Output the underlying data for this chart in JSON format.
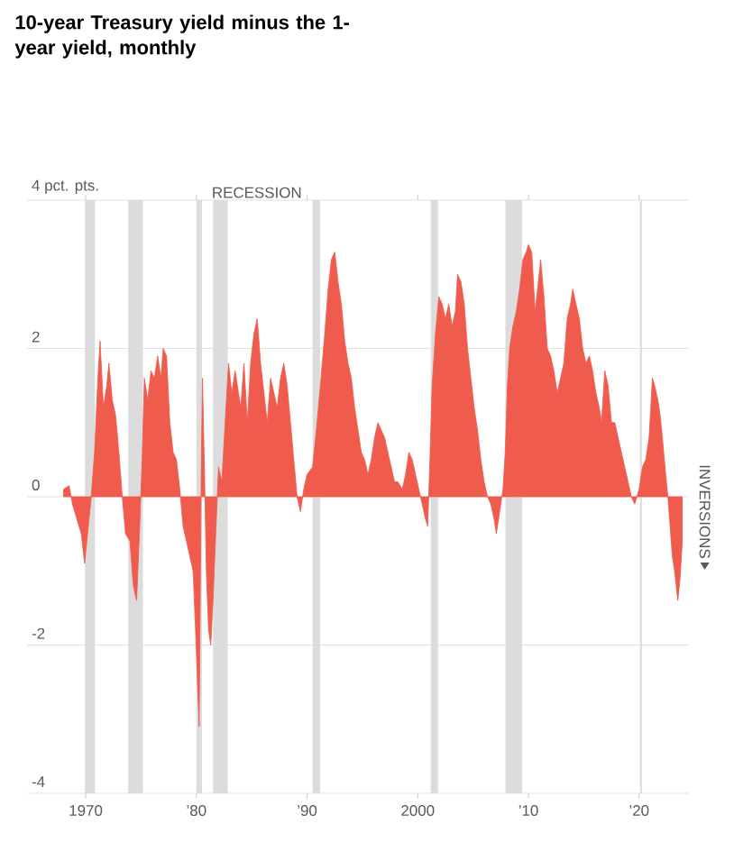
{
  "chart_data": {
    "type": "area",
    "title": "10-year Treasury yield minus the 1-year yield, monthly",
    "color": "#ef5b4c",
    "x": [
      1968.0,
      1968.5,
      1968.8,
      1969.2,
      1969.6,
      1969.9,
      1970.1,
      1970.5,
      1970.8,
      1971.1,
      1971.3,
      1971.6,
      1971.9,
      1972.1,
      1972.4,
      1972.7,
      1973.0,
      1973.3,
      1973.6,
      1974.0,
      1974.3,
      1974.6,
      1974.9,
      1975.1,
      1975.3,
      1975.6,
      1975.9,
      1976.2,
      1976.5,
      1976.8,
      1977.0,
      1977.3,
      1977.6,
      1977.9,
      1978.2,
      1978.5,
      1978.8,
      1979.1,
      1979.4,
      1979.7,
      1979.9,
      1980.1,
      1980.25,
      1980.45,
      1980.55,
      1980.75,
      1980.9,
      1981.1,
      1981.3,
      1981.5,
      1981.8,
      1982.0,
      1982.3,
      1982.6,
      1982.9,
      1983.2,
      1983.5,
      1983.8,
      1984.0,
      1984.3,
      1984.6,
      1984.9,
      1985.2,
      1985.5,
      1985.8,
      1986.1,
      1986.4,
      1986.7,
      1987.0,
      1987.3,
      1987.6,
      1987.9,
      1988.2,
      1988.5,
      1988.8,
      1989.1,
      1989.4,
      1989.7,
      1990.0,
      1990.5,
      1990.9,
      1991.2,
      1991.6,
      1991.9,
      1992.2,
      1992.5,
      1992.8,
      1993.1,
      1993.4,
      1993.7,
      1994.0,
      1994.3,
      1994.6,
      1994.9,
      1995.2,
      1995.5,
      1995.8,
      1996.1,
      1996.4,
      1996.7,
      1997.0,
      1997.3,
      1997.6,
      1997.9,
      1998.2,
      1998.6,
      1998.9,
      1999.2,
      1999.5,
      1999.8,
      2000.1,
      2000.4,
      2000.7,
      2000.9,
      2001.1,
      2001.3,
      2001.6,
      2001.9,
      2002.2,
      2002.5,
      2002.8,
      2003.1,
      2003.4,
      2003.6,
      2003.9,
      2004.2,
      2004.5,
      2004.8,
      2005.1,
      2005.4,
      2005.7,
      2006.0,
      2006.3,
      2006.6,
      2006.9,
      2007.1,
      2007.4,
      2007.7,
      2007.9,
      2008.1,
      2008.3,
      2008.6,
      2008.9,
      2009.2,
      2009.5,
      2009.8,
      2010.0,
      2010.3,
      2010.6,
      2010.9,
      2011.1,
      2011.4,
      2011.7,
      2012.0,
      2012.3,
      2012.6,
      2012.9,
      2013.2,
      2013.5,
      2013.8,
      2014.0,
      2014.3,
      2014.6,
      2014.9,
      2015.2,
      2015.5,
      2015.8,
      2016.1,
      2016.4,
      2016.6,
      2016.9,
      2017.2,
      2017.5,
      2017.8,
      2018.1,
      2018.4,
      2018.7,
      2019.0,
      2019.3,
      2019.6,
      2019.8,
      2020.0,
      2020.3,
      2020.6,
      2020.9,
      2021.2,
      2021.4,
      2021.7,
      2021.9,
      2022.1,
      2022.4,
      2022.6,
      2022.8,
      2023.0,
      2023.2,
      2023.5,
      2023.7,
      2023.9
    ],
    "values": [
      0.1,
      0.15,
      -0.1,
      -0.3,
      -0.5,
      -0.9,
      -0.6,
      0,
      0.6,
      1.6,
      2.1,
      1.2,
      1.5,
      1.8,
      1.3,
      1.1,
      0.6,
      0,
      -0.5,
      -0.6,
      -1.2,
      -1.4,
      -0.3,
      0.5,
      1.6,
      1.3,
      1.7,
      1.6,
      1.9,
      1.6,
      2.0,
      1.9,
      1.0,
      0.6,
      0.5,
      0.1,
      -0.4,
      -0.6,
      -0.8,
      -1.0,
      -1.7,
      -2.5,
      -3.1,
      0.5,
      1.6,
      0.2,
      -1.0,
      -1.8,
      -2.0,
      -1.4,
      -0.3,
      0.4,
      0.2,
      1.0,
      1.8,
      1.4,
      1.7,
      1.4,
      1.2,
      1.8,
      1.0,
      1.8,
      2.2,
      2.4,
      1.8,
      1.4,
      1.0,
      1.6,
      1.4,
      1.2,
      1.6,
      1.8,
      1.5,
      1.0,
      0.5,
      0.0,
      -0.2,
      0.1,
      0.3,
      0.4,
      1.0,
      1.5,
      2.2,
      2.8,
      3.2,
      3.3,
      2.9,
      2.6,
      2.1,
      1.8,
      1.6,
      1.2,
      0.9,
      0.6,
      0.5,
      0.3,
      0.5,
      0.8,
      1.0,
      0.9,
      0.8,
      0.6,
      0.4,
      0.2,
      0.2,
      0.1,
      0.3,
      0.6,
      0.5,
      0.3,
      0.1,
      -0.1,
      -0.3,
      -0.4,
      0.5,
      1.5,
      2.2,
      2.7,
      2.6,
      2.4,
      2.6,
      2.3,
      2.5,
      3.0,
      2.9,
      2.6,
      2.0,
      1.6,
      1.2,
      0.9,
      0.5,
      0.2,
      0.0,
      -0.1,
      -0.3,
      -0.5,
      -0.2,
      0.1,
      0.6,
      1.5,
      2.0,
      2.3,
      2.5,
      2.8,
      3.2,
      3.3,
      3.4,
      3.3,
      2.5,
      2.9,
      3.2,
      2.7,
      2.0,
      1.9,
      1.7,
      1.4,
      1.6,
      1.8,
      2.4,
      2.6,
      2.8,
      2.6,
      2.4,
      2.0,
      1.8,
      1.9,
      1.7,
      1.4,
      1.2,
      1.0,
      1.7,
      1.5,
      1.0,
      1.0,
      0.8,
      0.6,
      0.4,
      0.2,
      0.0,
      -0.1,
      0.0,
      0.1,
      0.4,
      0.5,
      0.8,
      1.6,
      1.5,
      1.3,
      1.1,
      0.8,
      0.3,
      0.0,
      -0.4,
      -0.8,
      -1.0,
      -1.4,
      -1.1,
      -0.6
    ],
    "xlim": [
      1964.7,
      2024.5
    ],
    "ylim": [
      -4,
      4
    ],
    "xticks": [
      {
        "value": 1970,
        "label": "1970"
      },
      {
        "value": 1980,
        "label": "’80"
      },
      {
        "value": 1990,
        "label": "’90"
      },
      {
        "value": 2000,
        "label": "2000"
      },
      {
        "value": 2010,
        "label": "’10"
      },
      {
        "value": 2020,
        "label": "’20"
      }
    ],
    "yticks": [
      {
        "value": 4,
        "label": "4 pct. pts."
      },
      2,
      0,
      -2,
      -4
    ],
    "grid": "y",
    "bands": [
      {
        "axis": "x",
        "from": 1969.92,
        "to": 1970.83,
        "color": "#dcdcdc"
      },
      {
        "axis": "x",
        "from": 1973.83,
        "to": 1975.17,
        "color": "#dcdcdc"
      },
      {
        "axis": "x",
        "from": 1980.0,
        "to": 1980.5,
        "color": "#dcdcdc"
      },
      {
        "axis": "x",
        "from": 1981.5,
        "to": 1982.83,
        "color": "#dcdcdc"
      },
      {
        "axis": "x",
        "from": 1990.5,
        "to": 1991.17,
        "color": "#dcdcdc"
      },
      {
        "axis": "x",
        "from": 2001.17,
        "to": 2001.83,
        "color": "#dcdcdc"
      },
      {
        "axis": "x",
        "from": 2007.92,
        "to": 2009.42,
        "color": "#dcdcdc"
      },
      {
        "axis": "x",
        "from": 2020.08,
        "to": 2020.25,
        "color": "#dcdcdc"
      }
    ],
    "annotations": [
      "RECESSION",
      "INVERSIONS"
    ]
  }
}
